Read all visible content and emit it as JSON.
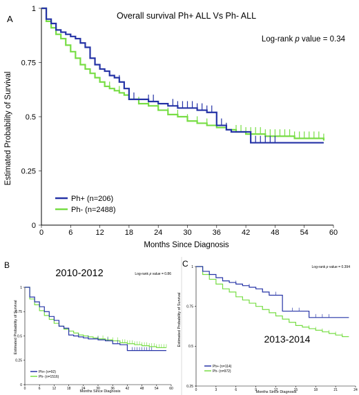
{
  "panels": [
    {
      "id": "a",
      "panel_label": "A",
      "title": "Overall survival Ph+ ALL Vs Ph- ALL",
      "annotation_text_pre": "Log-rank ",
      "annotation_text_p": "p",
      "annotation_text_post": " value = 0.34",
      "xlabel": "Months  Since  Diagnosis",
      "ylabel": "Estimated  Probability  of  Survival",
      "legend": [
        {
          "label": "Ph+ (n=206)",
          "color": "#2533a6"
        },
        {
          "label": "Ph- (n=2488)",
          "color": "#77dd44"
        }
      ]
    },
    {
      "id": "b",
      "panel_label": "B",
      "title": "2010-2012",
      "annotation_text_pre": "Log-rank ",
      "annotation_text_p": "p",
      "annotation_text_post": " value = 0.86",
      "xlabel": "Months  Since  Diagnosis",
      "ylabel": "Estimated  Probability  of  Survival",
      "legend": [
        {
          "label": "Ph+ (n=92)",
          "color": "#2533a6"
        },
        {
          "label": "Ph- (n=1516)",
          "color": "#77dd44"
        }
      ]
    },
    {
      "id": "c",
      "panel_label": "C",
      "title": "2013-2014",
      "annotation_text_pre": "Log-rank ",
      "annotation_text_p": "p",
      "annotation_text_post": " value = 0.394",
      "xlabel": "Months  Since  Diagnosis",
      "ylabel": "Estimated  Probability  of  Survival",
      "legend": [
        {
          "label": "Ph+ (n=114)",
          "color": "#2533a6"
        },
        {
          "label": "Ph- (n=972)",
          "color": "#77dd44"
        }
      ]
    }
  ],
  "chart_data": [
    {
      "type": "line",
      "chart_style": "step",
      "title": "Overall survival Ph+ ALL Vs Ph- ALL",
      "xlabel": "Months  Since  Diagnosis",
      "ylabel": "Estimated  Probability  of  Survival",
      "xlim": [
        0,
        60
      ],
      "ylim": [
        0,
        1
      ],
      "xticks": [
        0,
        6,
        12,
        18,
        24,
        30,
        36,
        42,
        48,
        54,
        60
      ],
      "yticks": [
        0,
        0.25,
        0.5,
        0.75,
        1
      ],
      "ytick_labels": [
        "0",
        "0.25",
        "0.5",
        "0.75",
        "1"
      ],
      "legend_position": "bottom-left",
      "series": [
        {
          "name": "Ph+ (n=206)",
          "color": "#2533a6",
          "x": [
            0,
            1,
            2,
            3,
            4,
            5,
            6,
            7,
            8,
            9,
            10,
            11,
            12,
            13,
            14,
            15,
            16,
            17,
            18,
            20,
            22,
            24,
            26,
            28,
            30,
            32,
            34,
            36,
            38,
            39,
            43,
            50,
            58
          ],
          "y": [
            1.0,
            0.95,
            0.93,
            0.9,
            0.89,
            0.88,
            0.87,
            0.86,
            0.84,
            0.82,
            0.77,
            0.74,
            0.72,
            0.71,
            0.69,
            0.68,
            0.66,
            0.63,
            0.58,
            0.58,
            0.57,
            0.56,
            0.55,
            0.54,
            0.54,
            0.53,
            0.52,
            0.46,
            0.44,
            0.43,
            0.38,
            0.38,
            0.38
          ],
          "censor_x": [
            16,
            17,
            19,
            22,
            23,
            27,
            28,
            29,
            30,
            31,
            32,
            33,
            34,
            35,
            36,
            37,
            38,
            44,
            45,
            46,
            47,
            48
          ]
        },
        {
          "name": "Ph- (n=2488)",
          "color": "#77dd44",
          "x": [
            0,
            1,
            2,
            3,
            4,
            5,
            6,
            7,
            8,
            9,
            10,
            11,
            12,
            13,
            14,
            15,
            16,
            17,
            18,
            20,
            22,
            24,
            26,
            28,
            30,
            32,
            34,
            36,
            38,
            40,
            42,
            44,
            46,
            48,
            50,
            52,
            54,
            56,
            58
          ],
          "y": [
            1.0,
            0.94,
            0.91,
            0.88,
            0.86,
            0.83,
            0.8,
            0.77,
            0.74,
            0.72,
            0.7,
            0.68,
            0.66,
            0.64,
            0.63,
            0.62,
            0.61,
            0.6,
            0.58,
            0.56,
            0.55,
            0.53,
            0.51,
            0.5,
            0.48,
            0.47,
            0.46,
            0.45,
            0.44,
            0.43,
            0.42,
            0.42,
            0.41,
            0.41,
            0.41,
            0.4,
            0.4,
            0.4,
            0.39
          ],
          "censor_x": [
            14,
            16,
            18,
            20,
            22,
            24,
            26,
            28,
            30,
            32,
            34,
            36,
            38,
            40,
            41,
            42,
            43,
            44,
            45,
            46,
            47,
            48,
            49,
            50,
            51,
            52,
            53,
            54,
            55,
            56,
            57,
            58
          ]
        }
      ]
    },
    {
      "type": "line",
      "chart_style": "step",
      "title": "2010-2012",
      "xlabel": "Months  Since  Diagnosis",
      "ylabel": "Estimated  Probability  of  Survival",
      "xlim": [
        0,
        60
      ],
      "ylim": [
        0,
        1
      ],
      "xticks": [
        0,
        6,
        12,
        18,
        24,
        30,
        36,
        42,
        48,
        54,
        60
      ],
      "yticks": [
        0,
        0.25,
        0.5,
        0.75,
        1
      ],
      "ytick_labels": [
        "0",
        "0.25",
        "0.5",
        "0.75",
        "1"
      ],
      "legend_position": "bottom-left",
      "series": [
        {
          "name": "Ph+ (n=92)",
          "color": "#2533a6",
          "x": [
            0,
            2,
            4,
            6,
            8,
            10,
            12,
            14,
            16,
            18,
            20,
            22,
            24,
            26,
            28,
            30,
            33,
            36,
            39,
            42,
            48,
            56,
            58
          ],
          "y": [
            1.0,
            0.9,
            0.85,
            0.8,
            0.75,
            0.7,
            0.66,
            0.6,
            0.58,
            0.51,
            0.5,
            0.49,
            0.48,
            0.47,
            0.47,
            0.46,
            0.45,
            0.42,
            0.41,
            0.35,
            0.35,
            0.35,
            0.35
          ],
          "censor_x": [
            22,
            26,
            30,
            34,
            38,
            44,
            45,
            46,
            47,
            48,
            49,
            50,
            51,
            52
          ]
        },
        {
          "name": "Ph- (n=1516)",
          "color": "#77dd44",
          "x": [
            0,
            2,
            4,
            6,
            8,
            10,
            12,
            14,
            16,
            18,
            20,
            22,
            24,
            26,
            28,
            30,
            33,
            36,
            39,
            42,
            45,
            48,
            51,
            54,
            58
          ],
          "y": [
            1.0,
            0.88,
            0.82,
            0.76,
            0.71,
            0.67,
            0.63,
            0.6,
            0.57,
            0.55,
            0.53,
            0.51,
            0.5,
            0.49,
            0.48,
            0.47,
            0.46,
            0.45,
            0.43,
            0.42,
            0.41,
            0.4,
            0.39,
            0.38,
            0.38
          ],
          "censor_x": [
            30,
            32,
            34,
            36,
            38,
            40,
            41,
            42,
            43,
            44,
            45,
            46,
            47,
            48,
            49,
            50,
            51,
            52,
            53,
            54,
            55,
            56,
            57,
            58
          ]
        }
      ]
    },
    {
      "type": "line",
      "chart_style": "step",
      "title": "2013-2014",
      "xlabel": "Months  Since  Diagnosis",
      "ylabel": "Estimated  Probability  of  Survival",
      "xlim": [
        0,
        24
      ],
      "ylim": [
        0.25,
        1
      ],
      "xticks": [
        0,
        3,
        6,
        9,
        12,
        15,
        18,
        21,
        24
      ],
      "yticks": [
        0.25,
        0.5,
        0.75,
        1
      ],
      "ytick_labels": [
        "0.25",
        "0.5",
        "0.75",
        "1"
      ],
      "legend_position": "bottom-left",
      "series": [
        {
          "name": "Ph+ (n=114)",
          "color": "#2533a6",
          "x": [
            0,
            1,
            2,
            3,
            4,
            5,
            6,
            7,
            8,
            9,
            10,
            11,
            13,
            14,
            15,
            16,
            17,
            18,
            20,
            23
          ],
          "y": [
            1.0,
            0.97,
            0.95,
            0.93,
            0.91,
            0.9,
            0.89,
            0.88,
            0.87,
            0.86,
            0.84,
            0.82,
            0.72,
            0.72,
            0.72,
            0.72,
            0.68,
            0.68,
            0.68,
            0.68
          ],
          "censor_x": [
            4,
            6,
            8,
            10,
            12,
            14.5,
            15.5,
            18,
            19,
            20
          ]
        },
        {
          "name": "Ph- (n=972)",
          "color": "#77dd44",
          "x": [
            0,
            1,
            2,
            3,
            4,
            5,
            6,
            7,
            8,
            9,
            10,
            11,
            12,
            13,
            14,
            15,
            16,
            17,
            18,
            19,
            20,
            21,
            22,
            23
          ],
          "y": [
            1.0,
            0.95,
            0.92,
            0.89,
            0.86,
            0.84,
            0.81,
            0.79,
            0.77,
            0.75,
            0.73,
            0.71,
            0.69,
            0.67,
            0.65,
            0.63,
            0.62,
            0.61,
            0.6,
            0.59,
            0.58,
            0.57,
            0.56,
            0.56
          ],
          "censor_x": [
            7,
            10,
            13,
            15,
            17,
            18,
            19,
            20,
            21,
            22
          ]
        }
      ]
    }
  ]
}
